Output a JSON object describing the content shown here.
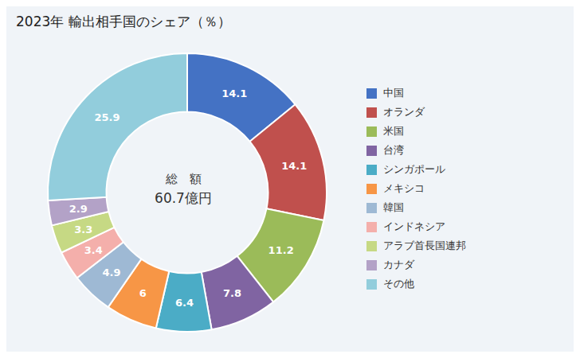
{
  "chart_data": {
    "type": "pie",
    "title": "2023年 輸出相手国のシェア（％）",
    "categories": [
      "中国",
      "オランダ",
      "米国",
      "台湾",
      "シンガポール",
      "メキシコ",
      "韓国",
      "インドネシア",
      "アラブ首長国連邦",
      "カナダ",
      "その他"
    ],
    "values": [
      14.1,
      14.1,
      11.2,
      7.8,
      6.4,
      6.0,
      4.9,
      3.4,
      3.3,
      2.9,
      25.9
    ],
    "colors": [
      "#4472C4",
      "#C0504D",
      "#9BBB59",
      "#8064A2",
      "#4BACC6",
      "#F79646",
      "#9EB9D4",
      "#F4AFAB",
      "#C6D984",
      "#B3A2C7",
      "#92CDDC"
    ],
    "annotations": [
      "総　額",
      "60.7億円"
    ],
    "data_labels": true,
    "legend": "right"
  }
}
